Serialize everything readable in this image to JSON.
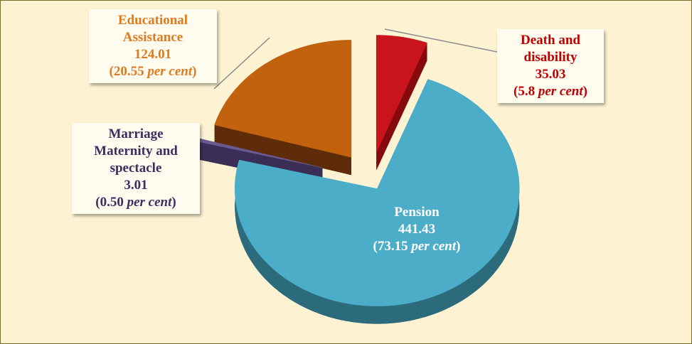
{
  "chart_data": {
    "type": "pie3d",
    "categories": [
      "Death and disability",
      "Pension",
      "Marriage Maternity and spectacle",
      "Educational Assistance"
    ],
    "values": [
      35.03,
      441.43,
      3.01,
      124.01
    ],
    "percents": [
      5.8,
      73.15,
      0.5,
      20.55
    ],
    "percent_labels": [
      "(5.8",
      "(73.15",
      "(0.50",
      "(20.55"
    ],
    "percent_unit": "per cent",
    "percent_close": ")",
    "colors": [
      "#c8141a",
      "#4cadc9",
      "#6a5a93",
      "#c2620f"
    ],
    "side_colors": [
      "#860a0c",
      "#2c6b7c",
      "#3a2e56",
      "#5e2c08"
    ]
  }
}
